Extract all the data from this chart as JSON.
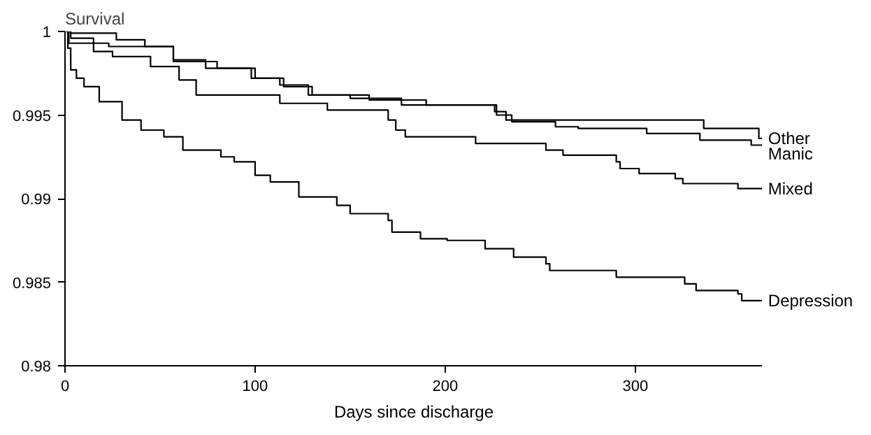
{
  "chart_data": {
    "type": "step",
    "ylabel": "Survival",
    "xlabel": "Days since discharge",
    "xlim": [
      0,
      367
    ],
    "ylim": [
      0.98,
      1
    ],
    "xticks": [
      0,
      100,
      200,
      300
    ],
    "yticks": [
      0.98,
      0.985,
      0.99,
      0.995,
      1
    ],
    "grid": false,
    "marker": "none",
    "line_style": "solid",
    "series": [
      {
        "name": "Other",
        "color": "#000000",
        "x": [
          0,
          3,
          27,
          42,
          57,
          74,
          98,
          113,
          128,
          150,
          177,
          226,
          232,
          336,
          365,
          367
        ],
        "values": [
          1,
          0.9999,
          0.9995,
          0.9991,
          0.9983,
          0.9978,
          0.9972,
          0.9968,
          0.9962,
          0.996,
          0.9956,
          0.9952,
          0.9947,
          0.9942,
          0.9936,
          0.9936
        ]
      },
      {
        "name": "Manic",
        "color": "#000000",
        "x": [
          0,
          2,
          23,
          57,
          80,
          100,
          115,
          130,
          160,
          190,
          227,
          235,
          258,
          270,
          306,
          334,
          361,
          367
        ],
        "values": [
          1,
          0.9993,
          0.9991,
          0.9982,
          0.9978,
          0.9972,
          0.9967,
          0.9962,
          0.9959,
          0.9956,
          0.995,
          0.9946,
          0.9943,
          0.9942,
          0.9939,
          0.9935,
          0.9932,
          0.9931
        ]
      },
      {
        "name": "Mixed",
        "color": "#000000",
        "x": [
          0,
          3,
          15,
          25,
          45,
          60,
          69,
          99,
          113,
          138,
          170,
          174,
          179,
          216,
          253,
          262,
          290,
          292,
          302,
          321,
          325,
          354,
          367
        ],
        "values": [
          1,
          0.9996,
          0.9988,
          0.9985,
          0.9979,
          0.9971,
          0.9962,
          0.9962,
          0.9957,
          0.9953,
          0.9947,
          0.9941,
          0.9937,
          0.9933,
          0.9929,
          0.9926,
          0.9922,
          0.9918,
          0.9915,
          0.9912,
          0.9909,
          0.9906,
          0.9906
        ]
      },
      {
        "name": "Depression",
        "color": "#000000",
        "x": [
          0,
          1.5,
          3,
          6,
          10,
          18,
          30,
          40,
          52,
          62,
          82,
          89,
          100,
          108,
          123,
          143,
          150,
          170,
          172,
          187,
          201,
          221,
          236,
          253,
          255,
          290,
          326,
          332,
          354,
          356,
          367
        ],
        "values": [
          1,
          0.999,
          0.9977,
          0.9972,
          0.9967,
          0.9958,
          0.9947,
          0.9941,
          0.9937,
          0.9929,
          0.9925,
          0.9922,
          0.9914,
          0.991,
          0.9901,
          0.9896,
          0.9891,
          0.9887,
          0.988,
          0.9876,
          0.9875,
          0.987,
          0.9865,
          0.9861,
          0.9857,
          0.9853,
          0.9849,
          0.9845,
          0.9843,
          0.9839,
          0.9839
        ]
      }
    ]
  }
}
